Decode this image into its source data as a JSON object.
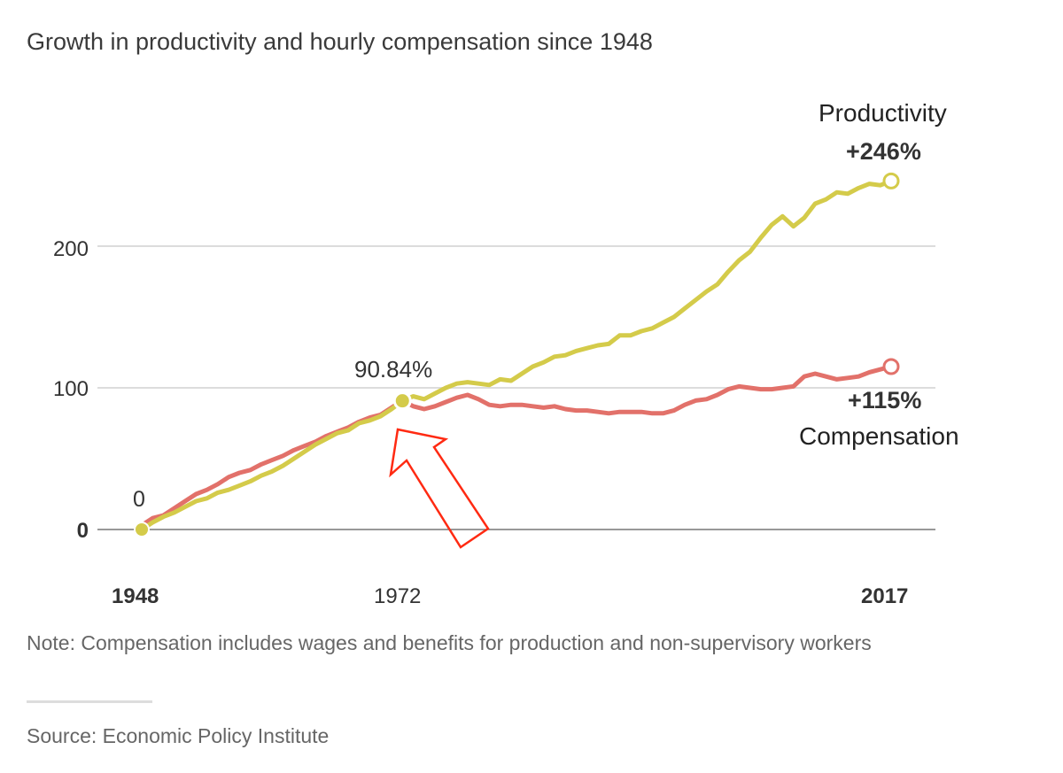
{
  "chart_data": {
    "type": "line",
    "title": "Growth in productivity and hourly compensation since 1948",
    "ylim": [
      0,
      250
    ],
    "xlim": [
      1948,
      2017
    ],
    "yticks": [
      "0",
      "100",
      "200"
    ],
    "xticks": [
      "1948",
      "1972",
      "2017"
    ],
    "grid": true,
    "legend": "direct labels at line ends",
    "colors": {
      "productivity": "#d4cb4a",
      "compensation": "#e2716a",
      "arrow": "#ff2a12"
    },
    "annotations": {
      "start": "0",
      "mid": "90.84%",
      "productivity_end": "+246%",
      "compensation_end": "+115%"
    },
    "series": [
      {
        "name": "Productivity",
        "x": [
          1948,
          1949,
          1950,
          1951,
          1952,
          1953,
          1954,
          1955,
          1956,
          1957,
          1958,
          1959,
          1960,
          1961,
          1962,
          1963,
          1964,
          1965,
          1966,
          1967,
          1968,
          1969,
          1970,
          1971,
          1972,
          1973,
          1974,
          1975,
          1976,
          1977,
          1978,
          1979,
          1980,
          1981,
          1982,
          1983,
          1984,
          1985,
          1986,
          1987,
          1988,
          1989,
          1990,
          1991,
          1992,
          1993,
          1994,
          1995,
          1996,
          1997,
          1998,
          1999,
          2000,
          2001,
          2002,
          2003,
          2004,
          2005,
          2006,
          2007,
          2008,
          2009,
          2010,
          2011,
          2012,
          2013,
          2014,
          2015,
          2016,
          2017
        ],
        "values": [
          0,
          5,
          9,
          12,
          16,
          20,
          22,
          26,
          28,
          31,
          34,
          38,
          41,
          45,
          50,
          55,
          60,
          64,
          68,
          70,
          75,
          77,
          80,
          85,
          90.84,
          94,
          92,
          96,
          100,
          103,
          104,
          103,
          102,
          106,
          105,
          110,
          115,
          118,
          122,
          123,
          126,
          128,
          130,
          131,
          137,
          137,
          140,
          142,
          146,
          150,
          156,
          162,
          168,
          173,
          182,
          190,
          196,
          206,
          215,
          221,
          214,
          220,
          230,
          233,
          238,
          237,
          241,
          244,
          243,
          246
        ]
      },
      {
        "name": "Compensation",
        "x": [
          1948,
          1949,
          1950,
          1951,
          1952,
          1953,
          1954,
          1955,
          1956,
          1957,
          1958,
          1959,
          1960,
          1961,
          1962,
          1963,
          1964,
          1965,
          1966,
          1967,
          1968,
          1969,
          1970,
          1971,
          1972,
          1973,
          1974,
          1975,
          1976,
          1977,
          1978,
          1979,
          1980,
          1981,
          1982,
          1983,
          1984,
          1985,
          1986,
          1987,
          1988,
          1989,
          1990,
          1991,
          1992,
          1993,
          1994,
          1995,
          1996,
          1997,
          1998,
          1999,
          2000,
          2001,
          2002,
          2003,
          2004,
          2005,
          2006,
          2007,
          2008,
          2009,
          2010,
          2011,
          2012,
          2013,
          2014,
          2015,
          2016,
          2017
        ],
        "values": [
          3,
          8,
          10,
          15,
          20,
          25,
          28,
          32,
          37,
          40,
          42,
          46,
          49,
          52,
          56,
          59,
          62,
          66,
          69,
          72,
          76,
          79,
          81,
          86,
          91,
          87,
          85,
          87,
          90,
          93,
          95,
          92,
          88,
          87,
          88,
          88,
          87,
          86,
          87,
          85,
          84,
          84,
          83,
          82,
          83,
          83,
          83,
          82,
          82,
          84,
          88,
          91,
          92,
          95,
          99,
          101,
          100,
          99,
          99,
          100,
          101,
          108,
          110,
          108,
          106,
          107,
          108,
          111,
          113,
          115
        ]
      }
    ]
  },
  "note": "Note: Compensation includes wages and benefits for production and non-supervisory workers",
  "note_line2": "workers",
  "source": "Source: Economic Policy Institute"
}
